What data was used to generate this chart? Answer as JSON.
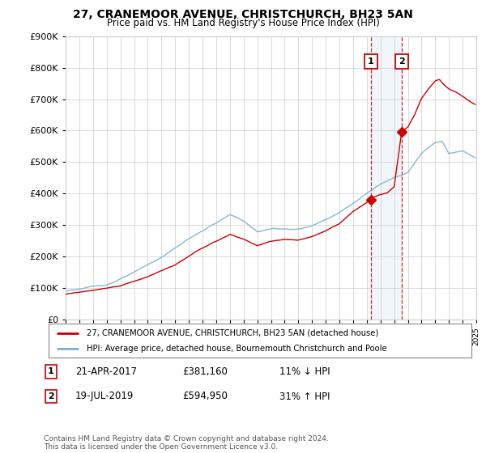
{
  "title": "27, CRANEMOOR AVENUE, CHRISTCHURCH, BH23 5AN",
  "subtitle": "Price paid vs. HM Land Registry's House Price Index (HPI)",
  "legend_label_red": "27, CRANEMOOR AVENUE, CHRISTCHURCH, BH23 5AN (detached house)",
  "legend_label_blue": "HPI: Average price, detached house, Bournemouth Christchurch and Poole",
  "transaction1_date": "21-APR-2017",
  "transaction1_price": "£381,160",
  "transaction1_hpi": "11% ↓ HPI",
  "transaction1_year": 2017.3,
  "transaction1_value": 381160,
  "transaction2_date": "19-JUL-2019",
  "transaction2_price": "£594,950",
  "transaction2_hpi": "31% ↑ HPI",
  "transaction2_year": 2019.55,
  "transaction2_value": 594950,
  "footer": "Contains HM Land Registry data © Crown copyright and database right 2024.\nThis data is licensed under the Open Government Licence v3.0.",
  "ylim": [
    0,
    900000
  ],
  "xlim": [
    1995.0,
    2025.0
  ],
  "red_color": "#cc0000",
  "blue_color": "#7bafd4",
  "background_color": "#ffffff",
  "grid_color": "#cccccc"
}
